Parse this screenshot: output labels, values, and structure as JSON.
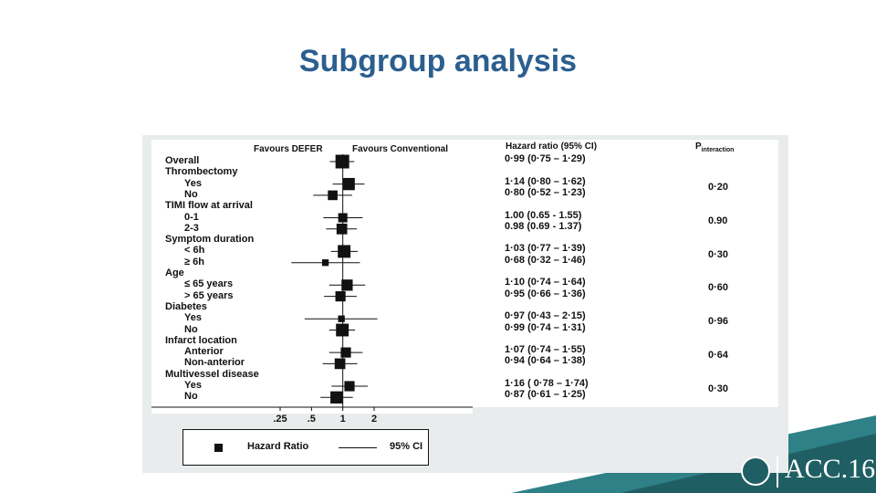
{
  "slide": {
    "title": "Subgroup analysis"
  },
  "colors": {
    "title": "#2c5f8f",
    "band_dark": "#1f5f63",
    "band_light": "#2f8087",
    "panel": "#e9ecec"
  },
  "chart_data": {
    "type": "forest",
    "header_left": "Favours DEFER",
    "header_right": "Favours Conventional",
    "table_header": {
      "ratio": "Hazard ratio (95% CI)",
      "p": "P",
      "p_sub": "interaction"
    },
    "x_scale": "log",
    "xlim": [
      0.16,
      4.5
    ],
    "x_ticks": [
      {
        "value": 0.25,
        "label": ".25"
      },
      {
        "value": 0.5,
        "label": ".5"
      },
      {
        "value": 1,
        "label": "1"
      },
      {
        "value": 2,
        "label": "2"
      }
    ],
    "reference_line": 1,
    "legend": {
      "marker": "Hazard Ratio",
      "line": "95% CI"
    },
    "rows": [
      {
        "label": "Overall",
        "indent": false,
        "hr": 0.99,
        "lo": 0.75,
        "hi": 1.29,
        "weight": 1.0,
        "ci_text": "0·99 (0·75 – 1·29)"
      },
      {
        "label": "Thrombectomy",
        "indent": false,
        "header": true
      },
      {
        "label": "Yes",
        "indent": true,
        "hr": 1.14,
        "lo": 0.8,
        "hi": 1.62,
        "weight": 0.85,
        "ci_text": "1·14 (0·80 – 1·62)"
      },
      {
        "label": "No",
        "indent": true,
        "hr": 0.8,
        "lo": 0.52,
        "hi": 1.23,
        "weight": 0.6,
        "ci_text": "0·80 (0·52 – 1·23)"
      },
      {
        "label": "TIMI flow at arrival",
        "indent": false,
        "header": true
      },
      {
        "label": "0-1",
        "indent": true,
        "hr": 1.0,
        "lo": 0.65,
        "hi": 1.55,
        "weight": 0.55,
        "ci_text": "1.00 (0.65 - 1.55)"
      },
      {
        "label": "2-3",
        "indent": true,
        "hr": 0.98,
        "lo": 0.69,
        "hi": 1.37,
        "weight": 0.7,
        "ci_text": "0.98 (0.69 - 1.37)"
      },
      {
        "label": "Symptom duration",
        "indent": false,
        "header": true
      },
      {
        "label": "< 6h",
        "indent": true,
        "hr": 1.03,
        "lo": 0.77,
        "hi": 1.39,
        "weight": 0.9,
        "ci_text": "1·03 (0·77 – 1·39)"
      },
      {
        "label": "≥ 6h",
        "indent": true,
        "hr": 0.68,
        "lo": 0.32,
        "hi": 1.46,
        "weight": 0.3,
        "ci_text": "0·68 (0·32 – 1·46)"
      },
      {
        "label": "Age",
        "indent": false,
        "header": true
      },
      {
        "label": "≤ 65 years",
        "indent": true,
        "hr": 1.1,
        "lo": 0.74,
        "hi": 1.64,
        "weight": 0.75,
        "ci_text": "1·10 (0·74 – 1·64)"
      },
      {
        "label": "> 65 years",
        "indent": true,
        "hr": 0.95,
        "lo": 0.66,
        "hi": 1.36,
        "weight": 0.65,
        "ci_text": "0·95 (0·66 – 1·36)"
      },
      {
        "label": "Diabetes",
        "indent": false,
        "header": true
      },
      {
        "label": "Yes",
        "indent": true,
        "hr": 0.97,
        "lo": 0.43,
        "hi": 2.15,
        "weight": 0.3,
        "ci_text": "0·97 (0·43 – 2·15)"
      },
      {
        "label": "No",
        "indent": true,
        "hr": 0.99,
        "lo": 0.74,
        "hi": 1.31,
        "weight": 0.9,
        "ci_text": "0·99 (0·74 – 1·31)"
      },
      {
        "label": "Infarct location",
        "indent": false,
        "header": true
      },
      {
        "label": "Anterior",
        "indent": true,
        "hr": 1.07,
        "lo": 0.74,
        "hi": 1.55,
        "weight": 0.65,
        "ci_text": "1·07 (0·74 – 1·55)"
      },
      {
        "label": "Non-anterior",
        "indent": true,
        "hr": 0.94,
        "lo": 0.64,
        "hi": 1.38,
        "weight": 0.7,
        "ci_text": "0·94 (0·64 – 1·38)"
      },
      {
        "label": "Multivessel disease",
        "indent": false,
        "header": true
      },
      {
        "label": "Yes",
        "indent": true,
        "hr": 1.16,
        "lo": 0.78,
        "hi": 1.74,
        "weight": 0.65,
        "ci_text": "1·16 ( 0·78 – 1·74)"
      },
      {
        "label": "No",
        "indent": true,
        "hr": 0.87,
        "lo": 0.61,
        "hi": 1.25,
        "weight": 0.85,
        "ci_text": "0·87 (0·61 – 1·25)"
      }
    ],
    "p_values": [
      {
        "group": "Thrombectomy",
        "value": "0·20"
      },
      {
        "group": "TIMI flow at arrival",
        "value": "0.90"
      },
      {
        "group": "Symptom duration",
        "value": "0·30"
      },
      {
        "group": "Age",
        "value": "0·60"
      },
      {
        "group": "Diabetes",
        "value": "0·96"
      },
      {
        "group": "Infarct location",
        "value": "0·64"
      },
      {
        "group": "Multivessel disease",
        "value": "0·30"
      }
    ]
  },
  "logo": {
    "text": "ACC.16"
  }
}
